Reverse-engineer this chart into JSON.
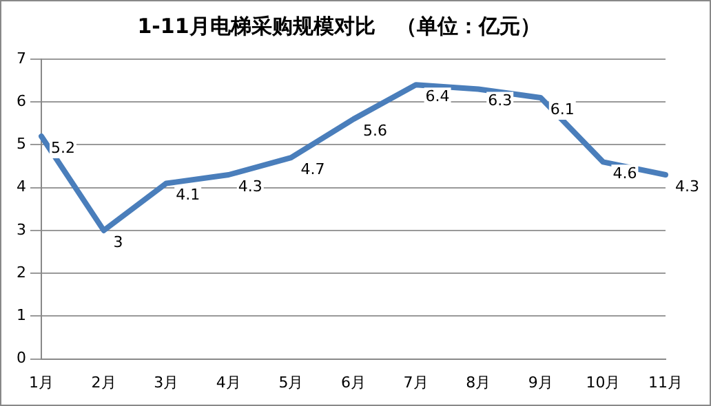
{
  "chart_data": {
    "type": "line",
    "title": "1-11月电梯采购规模对比　（单位：亿元）",
    "categories": [
      "1月",
      "2月",
      "3月",
      "4月",
      "5月",
      "6月",
      "7月",
      "8月",
      "9月",
      "10月",
      "11月"
    ],
    "series": [
      {
        "color": "#4a7ebb",
        "values": [
          5.2,
          3,
          4.1,
          4.3,
          4.7,
          5.6,
          6.4,
          6.3,
          6.1,
          4.6,
          4.3
        ]
      }
    ],
    "ylim": [
      0,
      7
    ],
    "yticks": [
      0,
      1,
      2,
      3,
      4,
      5,
      6,
      7
    ],
    "grid": "y",
    "legend": false,
    "marker": "none",
    "line_style": "solid",
    "data_labels": true
  }
}
